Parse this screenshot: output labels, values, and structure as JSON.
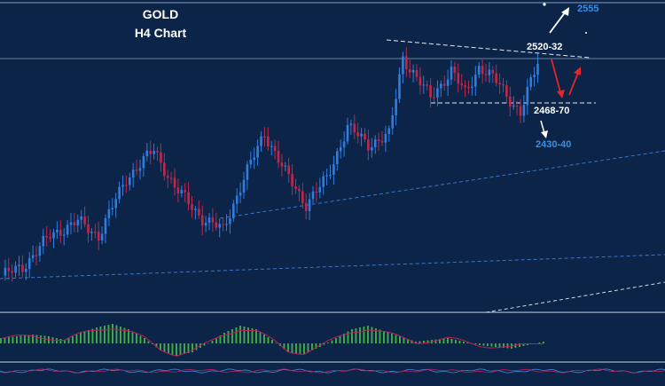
{
  "title": {
    "line1": "GOLD",
    "line2": "H4 Chart"
  },
  "colors": {
    "background": "#0b2447",
    "bull_candle": "#2f7de1",
    "bear_candle": "#c0284a",
    "hist_positive": "#3fae49",
    "signal_line": "#c01e5a",
    "level_label": "#ffffff",
    "target_label": "#3b8de6",
    "arrow_up": "#ffffff",
    "arrow_red": "#e0262b"
  },
  "levels": {
    "resistance": "2520-32",
    "support": "2468-70",
    "target_up": "2555",
    "target_down": "2430-40"
  },
  "chart_data": {
    "type": "candlestick",
    "instrument": "GOLD",
    "timeframe": "H4",
    "price_path": [
      {
        "i": 0,
        "close": 2372
      },
      {
        "i": 6,
        "close": 2378
      },
      {
        "i": 14,
        "close": 2400
      },
      {
        "i": 22,
        "close": 2410
      },
      {
        "i": 28,
        "close": 2400
      },
      {
        "i": 36,
        "close": 2440
      },
      {
        "i": 44,
        "close": 2460
      },
      {
        "i": 50,
        "close": 2434
      },
      {
        "i": 58,
        "close": 2412
      },
      {
        "i": 64,
        "close": 2404
      },
      {
        "i": 70,
        "close": 2440
      },
      {
        "i": 76,
        "close": 2472
      },
      {
        "i": 82,
        "close": 2444
      },
      {
        "i": 88,
        "close": 2422
      },
      {
        "i": 94,
        "close": 2440
      },
      {
        "i": 100,
        "close": 2476
      },
      {
        "i": 106,
        "close": 2464
      },
      {
        "i": 112,
        "close": 2470
      },
      {
        "i": 116,
        "close": 2525
      },
      {
        "i": 120,
        "close": 2510
      },
      {
        "i": 124,
        "close": 2497
      },
      {
        "i": 130,
        "close": 2515
      },
      {
        "i": 134,
        "close": 2500
      },
      {
        "i": 138,
        "close": 2518
      },
      {
        "i": 144,
        "close": 2506
      },
      {
        "i": 150,
        "close": 2485
      },
      {
        "i": 155,
        "close": 2522
      }
    ],
    "histogram": [
      3,
      4,
      5,
      4,
      2,
      6,
      9,
      11,
      8,
      3,
      -4,
      -7,
      -5,
      0,
      6,
      10,
      8,
      2,
      -5,
      -6,
      -2,
      3,
      8,
      10,
      7,
      4,
      1,
      2,
      3,
      1,
      -1,
      -2,
      -3,
      -1,
      1
    ]
  }
}
